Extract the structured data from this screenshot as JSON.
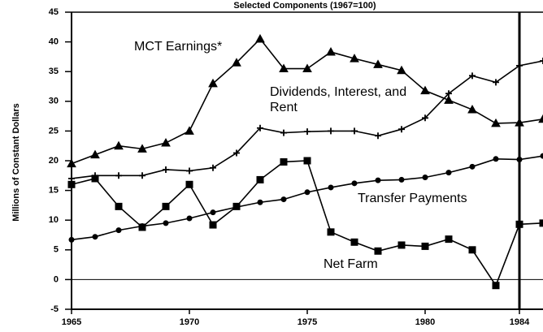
{
  "chart_data": {
    "type": "line",
    "title": "Selected Components (1967=100)",
    "y_label": "Millions of Constant Dollars",
    "x": [
      1965,
      1966,
      1967,
      1968,
      1969,
      1970,
      1971,
      1972,
      1973,
      1974,
      1975,
      1976,
      1977,
      1978,
      1979,
      1980,
      1981,
      1982,
      1983,
      1984,
      1985
    ],
    "xlim": [
      1965,
      1985
    ],
    "xticks": [
      1965,
      1970,
      1975,
      1980,
      1984
    ],
    "ylim": [
      -5,
      45
    ],
    "yticks": [
      -5,
      0,
      5,
      10,
      15,
      20,
      25,
      30,
      35,
      40,
      45
    ],
    "series": [
      {
        "name": "MCT Earnings*",
        "color": "#000000",
        "marker": "triangle",
        "values": [
          19.5,
          21,
          22.5,
          22,
          23,
          25,
          33,
          36.5,
          40.5,
          35.5,
          35.5,
          38.3,
          37.2,
          36.2,
          35.2,
          31.8,
          30.2,
          28.6,
          26.3,
          26.4,
          27
        ]
      },
      {
        "name": "Dividends, Interest, and Rent",
        "color": "#000000",
        "marker": "plus",
        "values": [
          17,
          17.5,
          17.5,
          17.5,
          18.5,
          18.3,
          18.8,
          21.3,
          25.5,
          24.7,
          24.9,
          25,
          25,
          24.2,
          25.3,
          27.2,
          31.3,
          34.3,
          33.2,
          36,
          36.8
        ]
      },
      {
        "name": "Transfer Payments",
        "color": "#000000",
        "marker": "circle",
        "values": [
          6.7,
          7.2,
          8.3,
          9,
          9.5,
          10.3,
          11.3,
          12.2,
          13,
          13.5,
          14.7,
          15.5,
          16.2,
          16.7,
          16.8,
          17.2,
          18,
          19,
          20.3,
          20.2,
          20.8
        ]
      },
      {
        "name": "Net Farm",
        "color": "#000000",
        "marker": "square",
        "values": [
          16,
          17,
          12.3,
          8.8,
          12.3,
          16,
          9.2,
          12.3,
          16.8,
          19.8,
          20,
          8,
          6.3,
          4.8,
          5.8,
          5.6,
          6.8,
          5,
          -1,
          9.3,
          9.5
        ]
      }
    ]
  }
}
